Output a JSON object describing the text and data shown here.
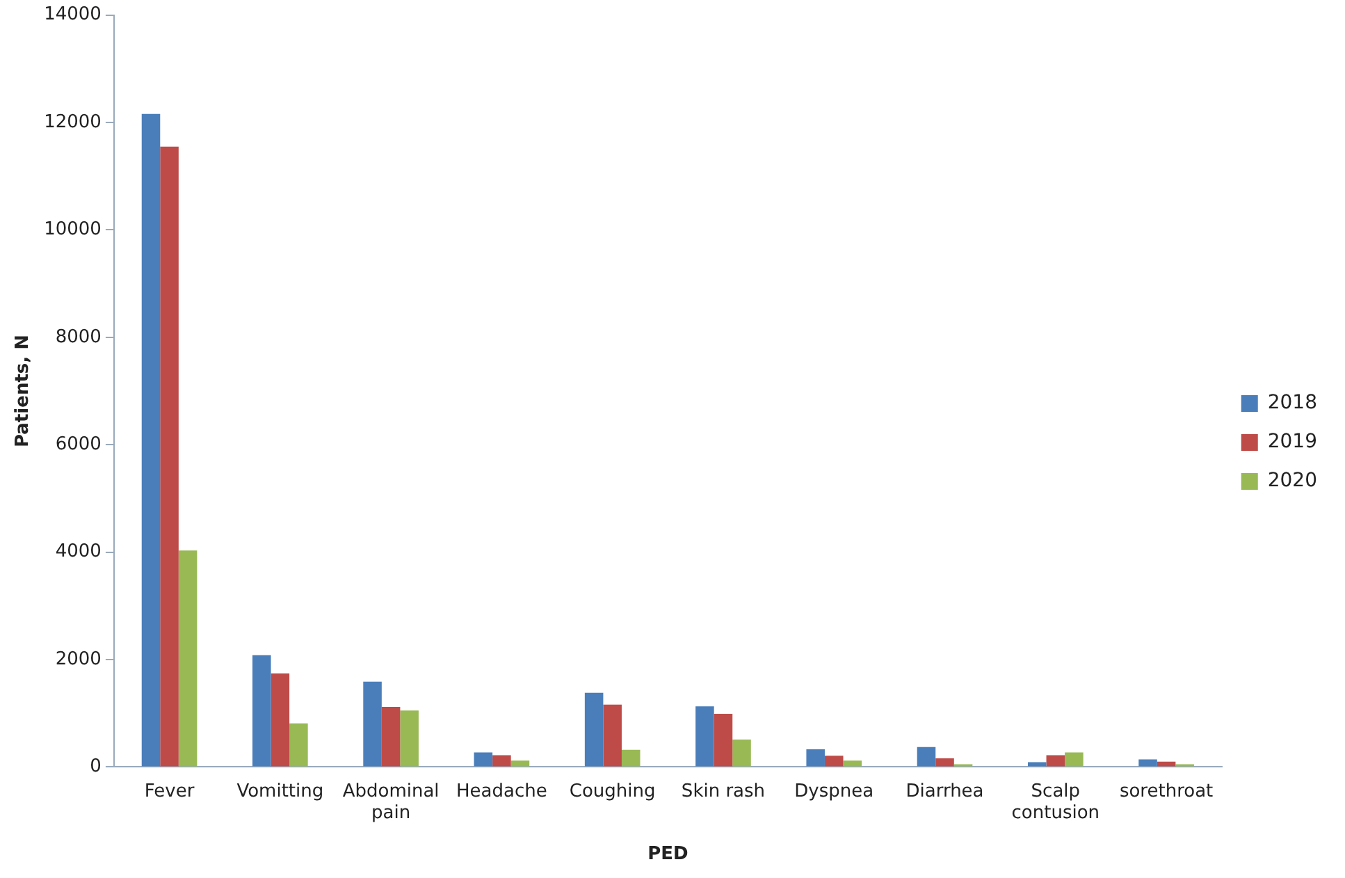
{
  "chart_data": {
    "type": "bar",
    "xlabel": "PED",
    "ylabel": "Patients, N",
    "categories": [
      "Fever",
      "Vomitting",
      "Abdominal pain",
      "Headache",
      "Coughing",
      "Skin rash",
      "Dyspnea",
      "Diarrhea",
      "Scalp contusion",
      "sorethroat"
    ],
    "series": [
      {
        "name": "2018",
        "color": "#4a7ebb",
        "values": [
          12160,
          2080,
          1590,
          270,
          1380,
          1130,
          330,
          370,
          90,
          140
        ]
      },
      {
        "name": "2019",
        "color": "#be4b48",
        "values": [
          11550,
          1740,
          1120,
          220,
          1160,
          990,
          210,
          160,
          220,
          100
        ]
      },
      {
        "name": "2020",
        "color": "#98b954",
        "values": [
          4030,
          810,
          1050,
          120,
          320,
          510,
          120,
          50,
          270,
          50
        ]
      }
    ],
    "ylim": [
      0,
      14000
    ],
    "yticks": [
      0,
      2000,
      4000,
      6000,
      8000,
      10000,
      12000,
      14000
    ],
    "grid": false,
    "legend": "right"
  }
}
